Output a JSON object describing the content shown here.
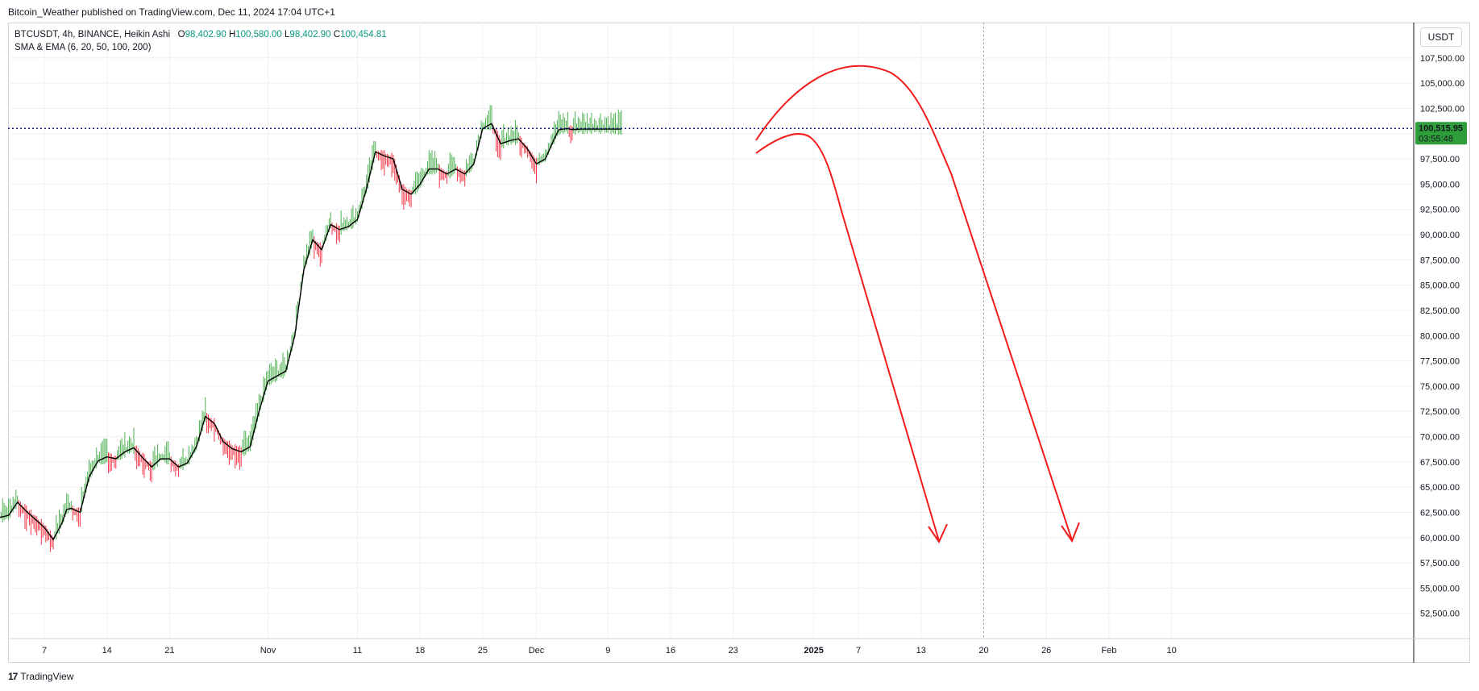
{
  "header": {
    "publish_line": "Bitcoin_Weather published on TradingView.com, Dec 11, 2024 17:04 UTC+1"
  },
  "legend": {
    "symbol_line": "BTCUSDT, 4h, BINANCE, Heikin Ashi",
    "open_label": "O",
    "open_value": "98,402.90",
    "high_label": "H",
    "high_value": "100,580.00",
    "low_label": "L",
    "low_value": "98,402.90",
    "close_label": "C",
    "close_value": "100,454.81",
    "indicator_line": "SMA & EMA (6, 20, 50, 100, 200)"
  },
  "currency": "USDT",
  "price_badge": {
    "price": "100,515.95",
    "countdown": "03:55:48"
  },
  "footer": {
    "logo": "17",
    "brand": "TradingView"
  },
  "colors": {
    "up": "#4caf50",
    "down": "#f23645",
    "price_line": "#1a237e",
    "drawing": "#f21c1c",
    "badge_bg": "#2e9e3b",
    "grid": "#eef0f3"
  },
  "chart_data": {
    "type": "line",
    "title": "",
    "xlabel": "",
    "ylabel": "",
    "ylim": [
      50000,
      111000
    ],
    "y_ticks": [
      52500,
      55000,
      57500,
      60000,
      62500,
      65000,
      67500,
      70000,
      72500,
      75000,
      77500,
      80000,
      82500,
      85000,
      87500,
      90000,
      92500,
      95000,
      97500,
      100000,
      102500,
      105000,
      107500
    ],
    "y_tick_labels": [
      "52,500.00",
      "55,000.00",
      "57,500.00",
      "60,000.00",
      "62,500.00",
      "65,000.00",
      "67,500.00",
      "70,000.00",
      "72,500.00",
      "75,000.00",
      "77,500.00",
      "80,000.00",
      "82,500.00",
      "85,000.00",
      "87,500.00",
      "90,000.00",
      "92,500.00",
      "95,000.00",
      "97,500.00",
      "100,000.00",
      "102,500.00",
      "105,000.00",
      "107,500.00"
    ],
    "x_tick_labels": [
      "7",
      "14",
      "21",
      "Nov",
      "11",
      "18",
      "25",
      "Dec",
      "9",
      "16",
      "23",
      "2025",
      "7",
      "13",
      "20",
      "26",
      "Feb",
      "10"
    ],
    "x_tick_days": [
      7,
      14,
      21,
      32,
      42,
      49,
      56,
      62,
      70,
      77,
      84,
      93,
      98,
      105,
      112,
      119,
      126,
      133
    ],
    "x_origin_date": "2024-10-01",
    "current_price": 100515.95,
    "series": [
      {
        "name": "",
        "x": [
          1.0,
          2.0,
          3.0,
          4.0,
          5.0,
          6.0,
          7.0,
          8.0,
          9.0,
          9.5,
          10.0,
          11.0,
          12.0,
          13.0,
          14.0,
          15.0,
          16.0,
          17.0,
          18.0,
          19.0,
          20.0,
          21.0,
          22.0,
          23.0,
          24.0,
          25.0,
          26.0,
          27.0,
          28.0,
          29.0,
          30.0,
          31.0,
          32.0,
          33.0,
          34.0,
          35.0,
          36.0,
          37.0,
          38.0,
          39.0,
          40.0,
          41.0,
          42.0,
          43.0,
          44.0,
          45.0,
          46.0,
          47.0,
          48.0,
          49.0,
          50.0,
          51.0,
          52.0,
          53.0,
          54.0,
          55.0,
          56.0,
          57.0,
          58.0,
          59.0,
          60.0,
          61.0,
          62.0,
          63.0,
          64.0,
          64.5,
          65.0,
          65.5,
          66.0,
          67.0,
          68.0,
          69.0,
          70.0,
          70.5,
          71.0,
          71.5
        ],
        "values": [
          61000,
          62000,
          62200,
          63500,
          62600,
          61800,
          61000,
          59800,
          61500,
          62800,
          62900,
          62500,
          66000,
          67600,
          68000,
          67800,
          68500,
          68900,
          67900,
          67000,
          67800,
          67800,
          67000,
          67400,
          69000,
          72000,
          71300,
          69500,
          68800,
          68500,
          69000,
          72500,
          75500,
          76000,
          76500,
          80000,
          86500,
          89500,
          88500,
          91000,
          90500,
          90800,
          91500,
          94500,
          98200,
          97800,
          97500,
          94500,
          94000,
          95000,
          96500,
          96500,
          96000,
          96500,
          96000,
          97000,
          100500,
          101000,
          99000,
          99300,
          99500,
          98500,
          97000,
          97500,
          99500,
          100400,
          100450,
          100500,
          100400,
          100454,
          100454,
          100454,
          100454,
          100454,
          100454,
          100454
        ]
      }
    ]
  }
}
